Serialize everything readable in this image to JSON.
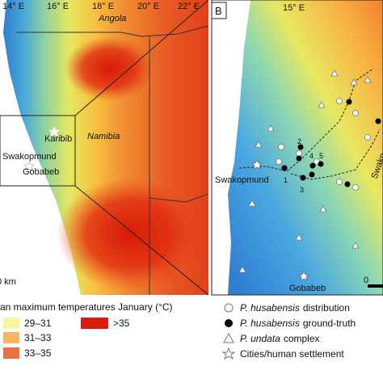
{
  "panel_a": {
    "longitudes": [
      "14° E",
      "16° E",
      "18° E",
      "20° E",
      "22° E"
    ],
    "country_north": "Angola",
    "country": "Namibia",
    "towns": [
      "Karibib",
      "Swakopmund",
      "Gobabeb"
    ],
    "scale": "0 km"
  },
  "panel_b": {
    "label": "B",
    "longitude": "15° E",
    "town_west": "Swakopmund",
    "town_south": "Gobabeb",
    "river": "Swako",
    "scale": "0",
    "sites": [
      "1",
      "2",
      "3",
      "4",
      "5"
    ]
  },
  "legend": {
    "title": "an maximum temperatures January (°C)",
    "classes": [
      "29–31",
      "31–33",
      "33–35",
      ">35"
    ],
    "symbols": [
      {
        "italic": "P. husabensis",
        "text": "distribution"
      },
      {
        "italic": "P. husabensis",
        "text": "ground-truth"
      },
      {
        "italic": "P. undata",
        "text": "complex"
      },
      {
        "text": "Cities/human settlement"
      }
    ]
  }
}
